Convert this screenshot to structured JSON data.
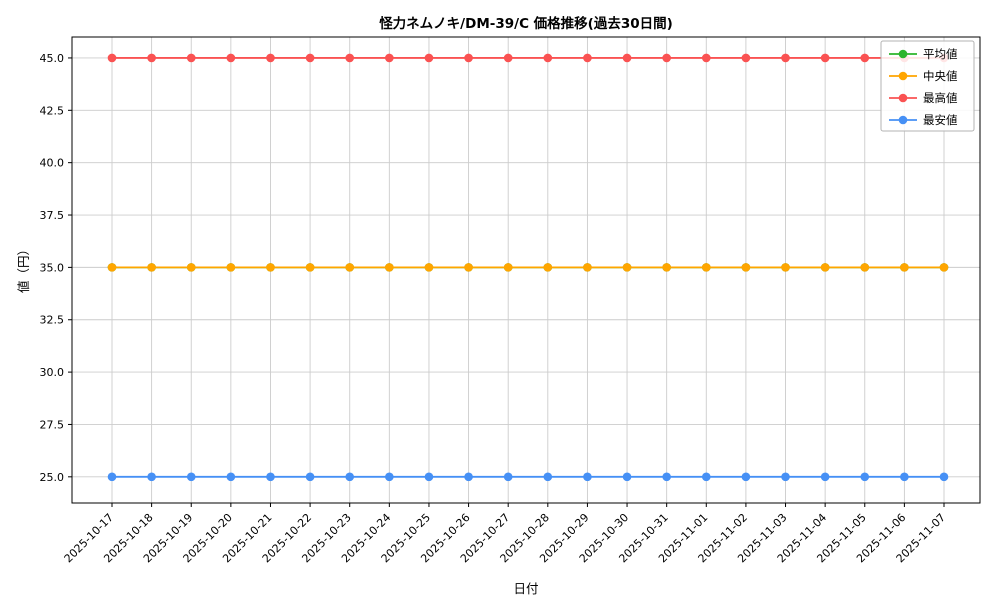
{
  "title": "怪力ネムノキ/DM-39/C 価格推移(過去30日間)",
  "chart_data": {
    "type": "line",
    "title": "怪力ネムノキ/DM-39/C 価格推移(過去30日間)",
    "xlabel": "日付",
    "ylabel": "値（円）",
    "x": [
      "2025-10-17",
      "2025-10-18",
      "2025-10-19",
      "2025-10-20",
      "2025-10-21",
      "2025-10-22",
      "2025-10-23",
      "2025-10-24",
      "2025-10-25",
      "2025-10-26",
      "2025-10-27",
      "2025-10-28",
      "2025-10-29",
      "2025-10-30",
      "2025-10-31",
      "2025-11-01",
      "2025-11-02",
      "2025-11-03",
      "2025-11-04",
      "2025-11-05",
      "2025-11-06",
      "2025-11-07"
    ],
    "series": [
      {
        "name": "平均値",
        "key": "average",
        "color": "#2cb52c",
        "values": [
          35,
          35,
          35,
          35,
          35,
          35,
          35,
          35,
          35,
          35,
          35,
          35,
          35,
          35,
          35,
          35,
          35,
          35,
          35,
          35,
          35,
          35
        ]
      },
      {
        "name": "中央値",
        "key": "median",
        "color": "#ffa500",
        "values": [
          35,
          35,
          35,
          35,
          35,
          35,
          35,
          35,
          35,
          35,
          35,
          35,
          35,
          35,
          35,
          35,
          35,
          35,
          35,
          35,
          35,
          35
        ]
      },
      {
        "name": "最高値",
        "key": "highest",
        "color": "#fa5252",
        "values": [
          45,
          45,
          45,
          45,
          45,
          45,
          45,
          45,
          45,
          45,
          45,
          45,
          45,
          45,
          45,
          45,
          45,
          45,
          45,
          45,
          45,
          45
        ]
      },
      {
        "name": "最安値",
        "key": "lowest",
        "color": "#4690f5",
        "values": [
          25,
          25,
          25,
          25,
          25,
          25,
          25,
          25,
          25,
          25,
          25,
          25,
          25,
          25,
          25,
          25,
          25,
          25,
          25,
          25,
          25,
          25
        ]
      }
    ],
    "yticks": [
      25,
      27.5,
      30,
      32.5,
      35,
      37.5,
      40,
      42.5,
      45
    ],
    "ylim": [
      23.75,
      46.0
    ],
    "grid": true,
    "legend_position": "upper right",
    "colors": {
      "grid": "#cccccc",
      "axis": "#000000",
      "legend_border": "#b3b3b3"
    }
  }
}
